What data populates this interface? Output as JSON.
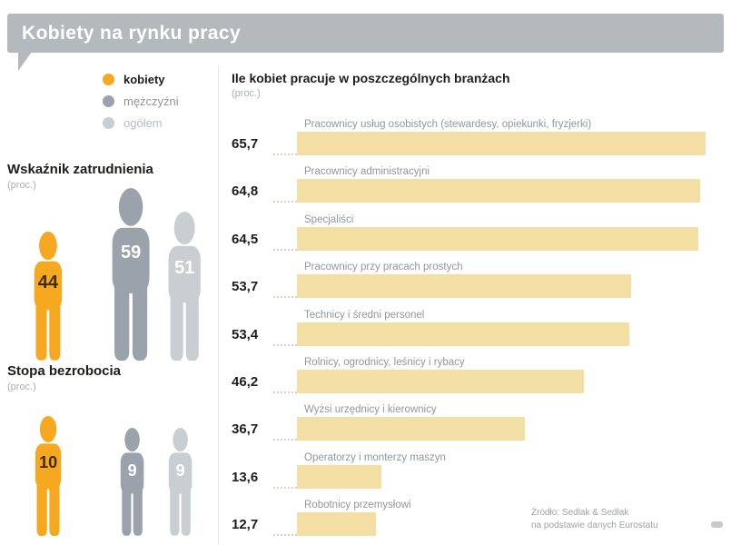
{
  "title": "Kobiety na rynku pracy",
  "legend": {
    "items": [
      {
        "label": "kobiety",
        "color": "#f6a821"
      },
      {
        "label": "mężczyźni",
        "color": "#9aa3ab"
      },
      {
        "label": "ogółem",
        "color": "#c9ced2"
      }
    ]
  },
  "employment": {
    "heading": "Wskaźnik zatrudnienia",
    "unit": "(proc.)",
    "figures": [
      {
        "group": "kobiety",
        "value": 44,
        "color": "#f6a821"
      },
      {
        "group": "mężczyźni",
        "value": 59,
        "color": "#9aa3ab"
      },
      {
        "group": "ogółem",
        "value": 51,
        "color": "#c9ced2"
      }
    ]
  },
  "unemployment": {
    "heading": "Stopa bezrobocia",
    "unit": "(proc.)",
    "figures": [
      {
        "group": "kobiety",
        "value": 10,
        "color": "#f6a821"
      },
      {
        "group": "mężczyźni",
        "value": 9,
        "color": "#9aa3ab"
      },
      {
        "group": "ogółem",
        "value": 9,
        "color": "#c9ced2"
      }
    ]
  },
  "chart": {
    "title": "Ile kobiet pracuje w poszczególnych branżach",
    "unit": "(proc.)",
    "bar_color": "#f3dfa4",
    "rows": [
      {
        "label": "Pracownicy usług osobistych (stewardesy, opiekunki, fryzjerki)",
        "value": 65.7,
        "value_label": "65,7"
      },
      {
        "label": "Pracownicy administracyjni",
        "value": 64.8,
        "value_label": "64,8"
      },
      {
        "label": "Specjaliści",
        "value": 64.5,
        "value_label": "64,5"
      },
      {
        "label": "Pracownicy przy pracach prostych",
        "value": 53.7,
        "value_label": "53,7"
      },
      {
        "label": "Technicy i średni personel",
        "value": 53.4,
        "value_label": "53,4"
      },
      {
        "label": "Rolnicy, ogrodnicy, leśnicy i rybacy",
        "value": 46.2,
        "value_label": "46,2"
      },
      {
        "label": "Wyżsi urzędnicy i kierownicy",
        "value": 36.7,
        "value_label": "36,7"
      },
      {
        "label": "Operatorzy i monterzy maszyn",
        "value": 13.6,
        "value_label": "13,6"
      },
      {
        "label": "Robotnicy przemysłowi",
        "value": 12.7,
        "value_label": "12,7"
      }
    ]
  },
  "source": {
    "line1": "Źródło: Sedlak & Sedlak",
    "line2": "na podstawie danych Eurostatu"
  },
  "chart_data": [
    {
      "type": "bar",
      "orientation": "horizontal",
      "title": "Ile kobiet pracuje w poszczególnych branżach",
      "xlabel": "proc.",
      "ylabel": "",
      "xlim": [
        0,
        70
      ],
      "grid": false,
      "bar_color": "#f3dfa4",
      "categories": [
        "Pracownicy usług osobistych (stewardesy, opiekunki, fryzjerki)",
        "Pracownicy administracyjni",
        "Specjaliści",
        "Pracownicy przy pracach prostych",
        "Technicy i średni personel",
        "Rolnicy, ogrodnicy, leśnicy i rybacy",
        "Wyżsi urzędnicy i kierownicy",
        "Operatorzy i monterzy maszyn",
        "Robotnicy przemysłowi"
      ],
      "values": [
        65.7,
        64.8,
        64.5,
        53.7,
        53.4,
        46.2,
        36.7,
        13.6,
        12.7
      ]
    },
    {
      "type": "pictogram",
      "title": "Wskaźnik zatrudnienia",
      "xlabel": "proc.",
      "categories": [
        "kobiety",
        "mężczyźni",
        "ogółem"
      ],
      "values": [
        44,
        59,
        51
      ]
    },
    {
      "type": "pictogram",
      "title": "Stopa bezrobocia",
      "xlabel": "proc.",
      "categories": [
        "kobiety",
        "mężczyźni",
        "ogółem"
      ],
      "values": [
        10,
        9,
        9
      ]
    }
  ]
}
